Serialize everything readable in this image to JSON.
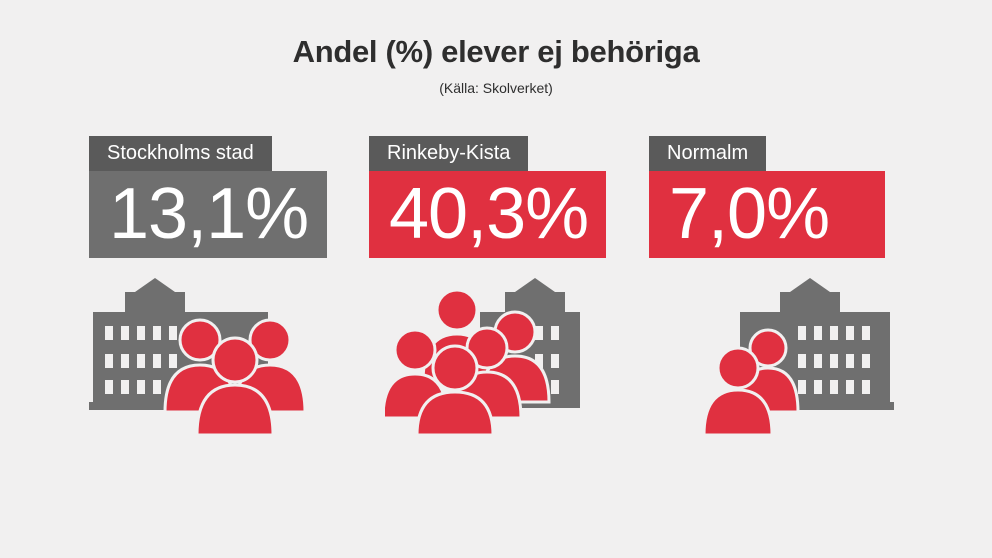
{
  "title": "Andel (%) elever ej behöriga",
  "subtitle": "(Källa: Skolverket)",
  "colors": {
    "grey": "#6f6f6f",
    "label_grey": "#5a5a5a",
    "red": "#e03040",
    "background": "#f1f0f0"
  },
  "cards": [
    {
      "label": "Stockholms stad",
      "value": "13,1%",
      "box_color": "grey"
    },
    {
      "label": "Rinkeby-Kista",
      "value": "40,3%",
      "box_color": "red"
    },
    {
      "label": "Normalm",
      "value": "7,0%",
      "box_color": "red"
    }
  ],
  "icons": [
    "school-building-icon",
    "people-group-icon"
  ]
}
